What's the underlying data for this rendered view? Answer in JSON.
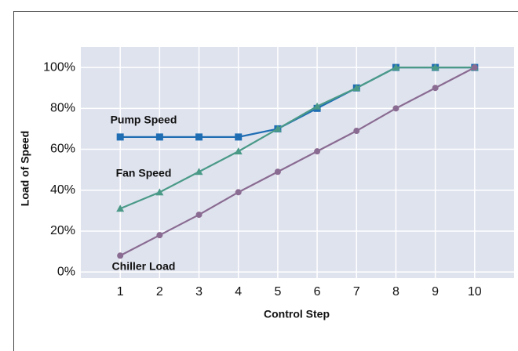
{
  "chart_data": {
    "type": "line",
    "x_label": "Control Step",
    "y_label": "Load of Speed",
    "x": [
      1,
      2,
      3,
      4,
      5,
      6,
      7,
      8,
      9,
      10
    ],
    "xlim": [
      0,
      11
    ],
    "xticks": [
      1,
      2,
      3,
      4,
      5,
      6,
      7,
      8,
      9,
      10
    ],
    "ylim": [
      -3,
      110
    ],
    "yticks": [
      {
        "value": 0,
        "label": "0%"
      },
      {
        "value": 20,
        "label": "20%"
      },
      {
        "value": 40,
        "label": "40%"
      },
      {
        "value": 60,
        "label": "60%"
      },
      {
        "value": 80,
        "label": "80%"
      },
      {
        "value": 100,
        "label": "100%"
      }
    ],
    "grid": true,
    "series": [
      {
        "name": "Pump Speed",
        "color": "#1f6db3",
        "marker": "square",
        "values": [
          66,
          66,
          66,
          66,
          70,
          80,
          90,
          100,
          100,
          100
        ]
      },
      {
        "name": "Fan Speed",
        "color": "#4b9a88",
        "marker": "triangle",
        "values": [
          31,
          39,
          49,
          59,
          70,
          81,
          90,
          100,
          100,
          100
        ]
      },
      {
        "name": "Chiller Load",
        "color": "#8a6b92",
        "marker": "circle",
        "values": [
          8,
          18,
          28,
          39,
          49,
          59,
          69,
          80,
          90,
          100
        ]
      }
    ]
  }
}
